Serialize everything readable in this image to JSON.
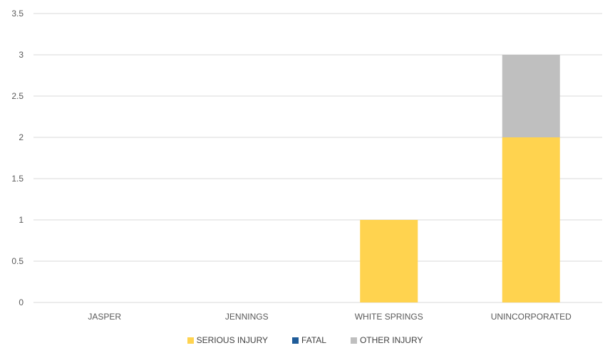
{
  "chart_data": {
    "type": "bar",
    "stacked": true,
    "categories": [
      "JASPER",
      "JENNINGS",
      "WHITE SPRINGS",
      "UNINCORPORATED"
    ],
    "series": [
      {
        "name": "SERIOUS INJURY",
        "color": "#FFD34F",
        "values": [
          0,
          0,
          1,
          2
        ]
      },
      {
        "name": "FATAL",
        "color": "#1F5C99",
        "values": [
          0,
          0,
          0,
          0
        ]
      },
      {
        "name": "OTHER INJURY",
        "color": "#BFBFBF",
        "values": [
          0,
          0,
          0,
          1
        ]
      }
    ],
    "ylim": [
      0,
      3.5
    ],
    "yticks": [
      "0",
      "0.5",
      "1",
      "1.5",
      "2",
      "2.5",
      "3",
      "3.5"
    ],
    "grid": true,
    "legend_position": "bottom",
    "title": "",
    "xlabel": "",
    "ylabel": ""
  }
}
